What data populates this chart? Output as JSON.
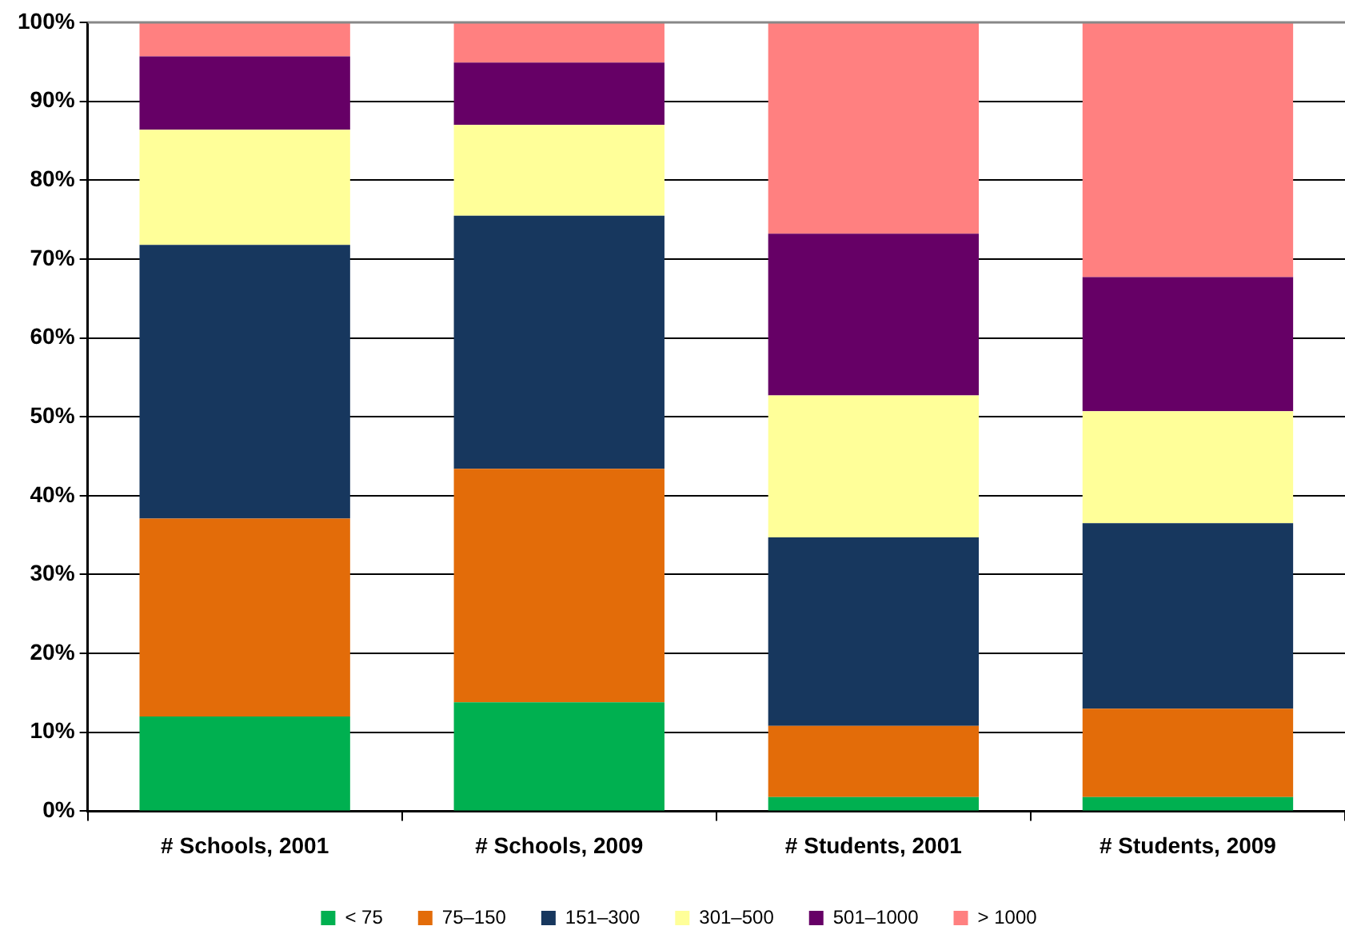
{
  "chart_data": {
    "type": "bar",
    "stacked": true,
    "categories": [
      "# Schools, 2001",
      "# Schools, 2009",
      "# Students, 2001",
      "# Students, 2009"
    ],
    "series": [
      {
        "name": "< 75",
        "color": "#00b050",
        "values": [
          12.0,
          13.8,
          1.8,
          1.8
        ]
      },
      {
        "name": "75–150",
        "color": "#e36c09",
        "values": [
          25.1,
          29.6,
          9.0,
          11.2
        ]
      },
      {
        "name": "151–300",
        "color": "#17375e",
        "values": [
          34.7,
          32.1,
          23.9,
          23.5
        ]
      },
      {
        "name": "301–500",
        "color": "#ffff99",
        "values": [
          14.6,
          11.5,
          18.0,
          14.2
        ]
      },
      {
        "name": "501–1000",
        "color": "#660066",
        "values": [
          9.3,
          7.9,
          20.5,
          17.0
        ]
      },
      {
        "name": "> 1000",
        "color": "#ff8080",
        "values": [
          4.3,
          5.1,
          26.8,
          32.3
        ]
      }
    ],
    "ylim": [
      0,
      100
    ],
    "yticks": [
      {
        "value": 0,
        "label": "0%"
      },
      {
        "value": 10,
        "label": "10%"
      },
      {
        "value": 20,
        "label": "20%"
      },
      {
        "value": 30,
        "label": "30%"
      },
      {
        "value": 40,
        "label": "40%"
      },
      {
        "value": 50,
        "label": "50%"
      },
      {
        "value": 60,
        "label": "60%"
      },
      {
        "value": 70,
        "label": "70%"
      },
      {
        "value": 80,
        "label": "80%"
      },
      {
        "value": 90,
        "label": "90%"
      },
      {
        "value": 100,
        "label": "100%"
      }
    ],
    "grid": "y",
    "legend": "bottom"
  }
}
